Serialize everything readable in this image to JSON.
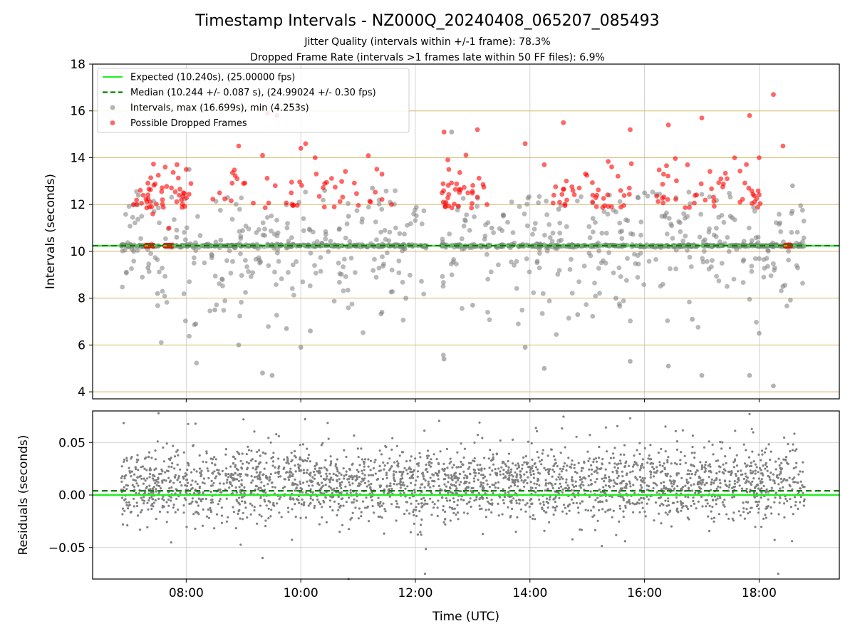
{
  "chart_data": [
    {
      "type": "scatter",
      "title": "Timestamp Intervals - NZ000Q_20240408_065207_085493",
      "subtitle_lines": [
        "Jitter Quality (intervals within +/-1 frame): 78.3%",
        "Dropped Frame Rate (intervals >1 frames late within 50 FF files): 6.9%"
      ],
      "xlabel": "",
      "ylabel": "Intervals (seconds)",
      "xlim": [
        "06:22",
        "19:24"
      ],
      "ylim": [
        3.7,
        18
      ],
      "x_ticks": [
        "08:00",
        "10:00",
        "12:00",
        "14:00",
        "16:00",
        "18:00"
      ],
      "y_ticks": [
        4,
        6,
        8,
        10,
        12,
        14,
        16,
        18
      ],
      "grid": true,
      "legend_position": "top-left",
      "legend": [
        {
          "label": "Expected (10.240s), (25.00000 fps)",
          "kind": "line",
          "color": "#22ee22",
          "style": "solid"
        },
        {
          "label": "Median (10.244 +/- 0.087 s), (24.99024 +/- 0.30 fps)",
          "kind": "line",
          "color": "#008000",
          "style": "dashed"
        },
        {
          "label": "Intervals, max (16.699s), min (4.253s)",
          "kind": "marker",
          "color": "#808080"
        },
        {
          "label": "Possible Dropped Frames",
          "kind": "marker",
          "color": "#ff0000"
        }
      ],
      "reference_lines": [
        {
          "name": "Expected",
          "y": 10.24,
          "color": "#22ee22",
          "style": "solid"
        },
        {
          "name": "Median",
          "y": 10.244,
          "color": "#008000",
          "style": "dashed"
        }
      ],
      "horizontal_bands_color": "#d4b86a",
      "time_range": [
        "06:52",
        "18:48"
      ],
      "series": [
        {
          "name": "Intervals, max (16.699s), min (4.253s)",
          "color": "#808080",
          "sample_points": [
            {
              "x": "07:05",
              "y": 10.0
            },
            {
              "x": "07:10",
              "y": 12.4
            },
            {
              "x": "07:20",
              "y": 9.3
            },
            {
              "x": "07:30",
              "y": 8.2
            },
            {
              "x": "07:50",
              "y": 10.6
            },
            {
              "x": "08:03",
              "y": 13.5
            },
            {
              "x": "08:10",
              "y": 6.9
            },
            {
              "x": "08:30",
              "y": 7.5
            },
            {
              "x": "08:55",
              "y": 6.0
            },
            {
              "x": "09:20",
              "y": 4.8
            },
            {
              "x": "09:30",
              "y": 4.7
            },
            {
              "x": "09:45",
              "y": 6.7
            },
            {
              "x": "10:00",
              "y": 5.9
            },
            {
              "x": "10:10",
              "y": 6.6
            },
            {
              "x": "10:25",
              "y": 12.6
            },
            {
              "x": "10:50",
              "y": 11.5
            },
            {
              "x": "11:15",
              "y": 12.7
            },
            {
              "x": "11:25",
              "y": 7.4
            },
            {
              "x": "11:50",
              "y": 8.0
            },
            {
              "x": "12:30",
              "y": 5.4
            },
            {
              "x": "12:38",
              "y": 15.1
            },
            {
              "x": "12:45",
              "y": 11.9
            },
            {
              "x": "13:00",
              "y": 7.7
            },
            {
              "x": "13:20",
              "y": 11.0
            },
            {
              "x": "13:55",
              "y": 5.9
            },
            {
              "x": "14:15",
              "y": 5.0
            },
            {
              "x": "14:30",
              "y": 11.8
            },
            {
              "x": "14:50",
              "y": 7.3
            },
            {
              "x": "15:30",
              "y": 8.0
            },
            {
              "x": "15:45",
              "y": 5.3
            },
            {
              "x": "16:00",
              "y": 12.5
            },
            {
              "x": "16:25",
              "y": 5.1
            },
            {
              "x": "16:50",
              "y": 7.1
            },
            {
              "x": "17:00",
              "y": 4.7
            },
            {
              "x": "17:30",
              "y": 11.5
            },
            {
              "x": "17:50",
              "y": 4.7
            },
            {
              "x": "18:00",
              "y": 6.5
            },
            {
              "x": "18:15",
              "y": 4.25
            },
            {
              "x": "18:25",
              "y": 8.5
            },
            {
              "x": "18:35",
              "y": 12.8
            }
          ]
        },
        {
          "name": "Possible Dropped Frames",
          "color": "#ff0000",
          "sample_points": [
            {
              "x": "07:05",
              "y": 12.0
            },
            {
              "x": "07:15",
              "y": 12.4
            },
            {
              "x": "07:25",
              "y": 11.6
            },
            {
              "x": "07:38",
              "y": 13.6
            },
            {
              "x": "07:42",
              "y": 11.0
            },
            {
              "x": "07:55",
              "y": 12.2
            },
            {
              "x": "08:00",
              "y": 13.5
            },
            {
              "x": "08:05",
              "y": 12.9
            },
            {
              "x": "08:35",
              "y": 12.5
            },
            {
              "x": "08:55",
              "y": 14.5
            },
            {
              "x": "09:00",
              "y": 12.9
            },
            {
              "x": "09:20",
              "y": 14.1
            },
            {
              "x": "09:25",
              "y": 15.9
            },
            {
              "x": "09:35",
              "y": 15.8
            },
            {
              "x": "09:50",
              "y": 12.5
            },
            {
              "x": "10:00",
              "y": 14.4
            },
            {
              "x": "10:05",
              "y": 14.6
            },
            {
              "x": "10:15",
              "y": 14.0
            },
            {
              "x": "10:25",
              "y": 12.9
            },
            {
              "x": "10:35",
              "y": 11.9
            },
            {
              "x": "11:25",
              "y": 13.3
            },
            {
              "x": "11:35",
              "y": 12.0
            },
            {
              "x": "12:30",
              "y": 15.1
            },
            {
              "x": "12:35",
              "y": 13.5
            },
            {
              "x": "12:55",
              "y": 12.5
            },
            {
              "x": "13:05",
              "y": 15.2
            },
            {
              "x": "13:15",
              "y": 12.0
            },
            {
              "x": "13:55",
              "y": 14.6
            },
            {
              "x": "14:15",
              "y": 13.7
            },
            {
              "x": "14:25",
              "y": 12.4
            },
            {
              "x": "14:35",
              "y": 15.5
            },
            {
              "x": "14:45",
              "y": 12.6
            },
            {
              "x": "15:10",
              "y": 12.4
            },
            {
              "x": "15:35",
              "y": 12.6
            },
            {
              "x": "15:45",
              "y": 15.2
            },
            {
              "x": "16:20",
              "y": 13.3
            },
            {
              "x": "16:25",
              "y": 15.4
            },
            {
              "x": "16:45",
              "y": 13.7
            },
            {
              "x": "17:00",
              "y": 15.7
            },
            {
              "x": "17:20",
              "y": 13.1
            },
            {
              "x": "17:40",
              "y": 12.1
            },
            {
              "x": "17:50",
              "y": 15.8
            },
            {
              "x": "18:00",
              "y": 14.0
            },
            {
              "x": "18:15",
              "y": 16.7
            },
            {
              "x": "18:25",
              "y": 14.5
            },
            {
              "x": "07:20",
              "y": 10.24
            },
            {
              "x": "07:40",
              "y": 10.24
            },
            {
              "x": "18:30",
              "y": 10.24
            }
          ]
        }
      ]
    },
    {
      "type": "scatter",
      "title": "",
      "xlabel": "Time (UTC)",
      "ylabel": "Residuals (seconds)",
      "xlim": [
        "06:22",
        "19:24"
      ],
      "ylim": [
        -0.08,
        0.08
      ],
      "x_ticks": [
        "08:00",
        "10:00",
        "12:00",
        "14:00",
        "16:00",
        "18:00"
      ],
      "y_ticks": [
        "−0.05",
        "0.00",
        "0.05"
      ],
      "y_tick_values": [
        -0.05,
        0.0,
        0.05
      ],
      "grid": true,
      "reference_lines": [
        {
          "name": "Expected",
          "y": 0.0,
          "color": "#22ee22",
          "style": "solid"
        },
        {
          "name": "Median",
          "y": 0.004,
          "color": "#008000",
          "style": "dashed"
        }
      ],
      "series": [
        {
          "name": "Residuals",
          "color": "#808080",
          "time_range": [
            "06:52",
            "18:48"
          ],
          "center": 0.015,
          "spread": 0.045,
          "extremes": [
            {
              "x": "09:00",
              "y": 0.072
            },
            {
              "x": "09:20",
              "y": -0.06
            },
            {
              "x": "10:50",
              "y": -0.08
            },
            {
              "x": "12:10",
              "y": -0.075
            },
            {
              "x": "15:45",
              "y": 0.073
            },
            {
              "x": "17:50",
              "y": 0.077
            },
            {
              "x": "18:20",
              "y": -0.075
            }
          ]
        }
      ]
    }
  ]
}
